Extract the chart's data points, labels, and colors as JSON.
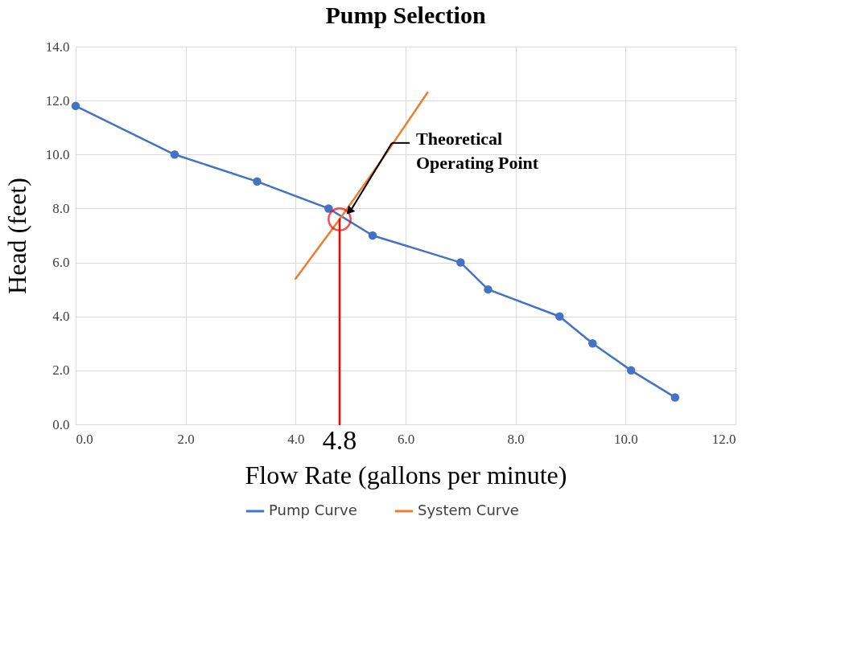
{
  "chart_data": {
    "type": "line",
    "title": "Pump Selection",
    "xlabel": "Flow Rate (gallons per minute)",
    "ylabel": "Head (feet)",
    "xlim": [
      0,
      12
    ],
    "ylim": [
      0,
      14
    ],
    "xticks": [
      {
        "value": 0,
        "label": "0.0"
      },
      {
        "value": 2,
        "label": "2.0"
      },
      {
        "value": 4,
        "label": "4.0"
      },
      {
        "value": 6,
        "label": "6.0"
      },
      {
        "value": 8,
        "label": "8.0"
      },
      {
        "value": 10,
        "label": "10.0"
      },
      {
        "value": 12,
        "label": "12.0"
      }
    ],
    "yticks": [
      {
        "value": 0,
        "label": "0.0"
      },
      {
        "value": 2,
        "label": "2.0"
      },
      {
        "value": 4,
        "label": "4.0"
      },
      {
        "value": 6,
        "label": "6.0"
      },
      {
        "value": 8,
        "label": "8.0"
      },
      {
        "value": 10,
        "label": "10.0"
      },
      {
        "value": 12,
        "label": "12.0"
      },
      {
        "value": 14,
        "label": "14.0"
      }
    ],
    "grid": true,
    "legend": "bottom",
    "series": [
      {
        "name": "Pump Curve",
        "marker": "circle",
        "color": "#4472c4",
        "x": [
          0,
          1.8,
          3.3,
          4.6,
          5.4,
          7.0,
          7.5,
          8.8,
          9.4,
          10.1,
          10.9
        ],
        "values": [
          11.8,
          10.0,
          9.0,
          8.0,
          7.0,
          6.0,
          5.0,
          4.0,
          3.0,
          2.0,
          1.0
        ]
      },
      {
        "name": "System Curve",
        "marker": "none",
        "color": "#ed7d31",
        "x": [
          4.0,
          4.8,
          5.6,
          6.4
        ],
        "values": [
          5.4,
          7.6,
          9.9,
          12.3
        ]
      },
      {
        "marker": "none",
        "color": "#ff0000",
        "x": [
          4.8,
          4.8
        ],
        "values": [
          0,
          7.6
        ]
      },
      {
        "type": "scatter",
        "marker": "circle",
        "color": "#ff0000",
        "x": [
          4.8
        ],
        "values": [
          7.6
        ]
      }
    ],
    "annotations": [
      "Theoretical Operating Point",
      {
        "text": "4.8",
        "x": 4.8,
        "y": 0
      }
    ]
  }
}
